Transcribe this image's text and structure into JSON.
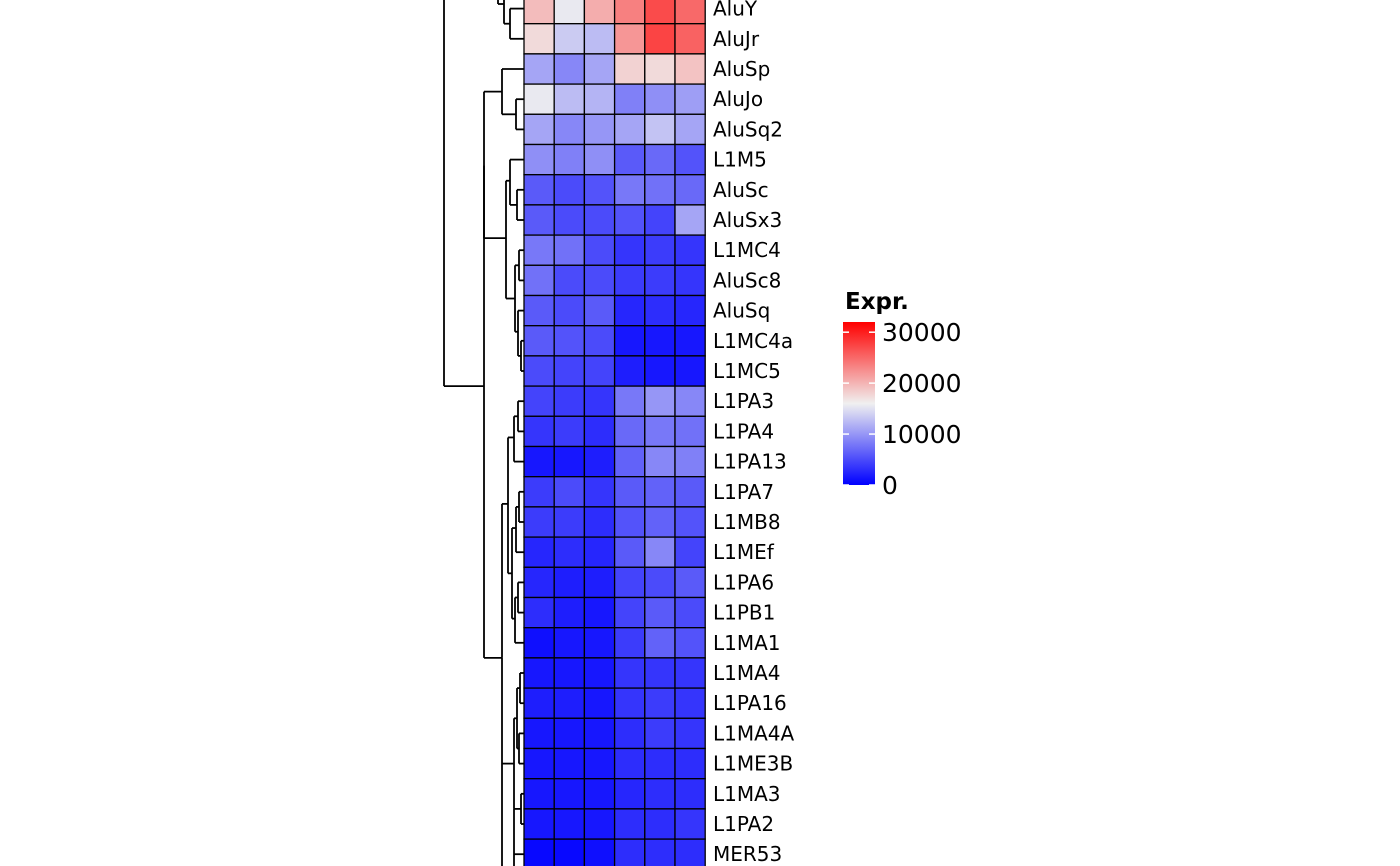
{
  "chart_data": {
    "type": "heatmap",
    "rows": [
      "AluY",
      "AluJr",
      "AluSp",
      "AluJo",
      "AluSq2",
      "L1M5",
      "AluSc",
      "AluSx3",
      "L1MC4",
      "AluSc8",
      "AluSq",
      "L1MC4a",
      "L1MC5",
      "L1PA3",
      "L1PA4",
      "L1PA13",
      "L1PA7",
      "L1MB8",
      "L1MEf",
      "L1PA6",
      "L1PB1",
      "L1MA1",
      "L1MA4",
      "L1PA16",
      "L1MA4A",
      "L1ME3B",
      "L1MA3",
      "L1PA2",
      "MER53"
    ],
    "columns": 6,
    "values": [
      [
        19500,
        15500,
        20500,
        23500,
        27000,
        25000
      ],
      [
        17500,
        13500,
        12500,
        22000,
        27500,
        25500
      ],
      [
        11000,
        9000,
        11000,
        18000,
        17500,
        19000
      ],
      [
        15500,
        12500,
        12000,
        8500,
        9500,
        10500
      ],
      [
        11000,
        9000,
        10000,
        11000,
        13000,
        11000
      ],
      [
        9500,
        8500,
        9500,
        6000,
        7000,
        5500
      ],
      [
        6000,
        5000,
        5500,
        8000,
        7500,
        7000
      ],
      [
        6000,
        5000,
        5000,
        5500,
        4500,
        11000
      ],
      [
        8000,
        7500,
        5000,
        3500,
        4000,
        3500
      ],
      [
        7500,
        5000,
        5000,
        4000,
        4000,
        3500
      ],
      [
        6000,
        5000,
        6000,
        2500,
        3000,
        2500
      ],
      [
        6000,
        5500,
        5000,
        1500,
        1500,
        1500
      ],
      [
        5000,
        4500,
        4500,
        2000,
        1500,
        1500
      ],
      [
        4500,
        4000,
        3500,
        8000,
        10000,
        9000
      ],
      [
        3500,
        4000,
        3000,
        7000,
        8000,
        7500
      ],
      [
        1500,
        1500,
        2000,
        6500,
        9000,
        8500
      ],
      [
        4000,
        5000,
        3500,
        6000,
        6500,
        6000
      ],
      [
        4000,
        4000,
        3000,
        5500,
        6500,
        5500
      ],
      [
        2500,
        3000,
        2500,
        6000,
        9000,
        4500
      ],
      [
        2500,
        2000,
        2000,
        4500,
        5000,
        6000
      ],
      [
        3000,
        2000,
        1500,
        4500,
        6000,
        5000
      ],
      [
        1000,
        1500,
        1500,
        4000,
        6500,
        5500
      ],
      [
        1500,
        1500,
        1500,
        3500,
        3500,
        3500
      ],
      [
        2000,
        2000,
        1500,
        3500,
        4000,
        3500
      ],
      [
        1500,
        1500,
        1500,
        3000,
        4000,
        3500
      ],
      [
        1500,
        1500,
        1500,
        3000,
        3000,
        3000
      ],
      [
        1500,
        1500,
        1500,
        2500,
        3000,
        3000
      ],
      [
        1500,
        1500,
        1500,
        3000,
        3000,
        3500
      ],
      [
        500,
        500,
        1000,
        3000,
        3000,
        3000
      ]
    ],
    "color_scale": {
      "low": "#0000ff",
      "mid": "#f0f0f0",
      "high": "#ff0000",
      "min": 0,
      "mid_value": 16000,
      "max": 32000
    },
    "legend": {
      "title": "Expr.",
      "ticks": [
        0,
        10000,
        20000,
        30000
      ],
      "placement": "right"
    },
    "dendrogram": "rows"
  }
}
